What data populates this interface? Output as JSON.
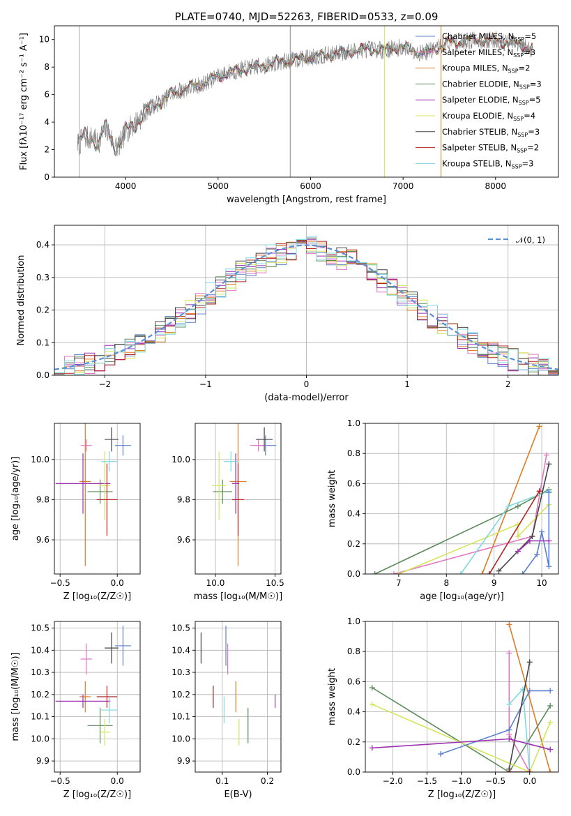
{
  "chart_data": [
    {
      "id": "spectrum",
      "type": "line",
      "title": "PLATE=0740, MJD=52263, FIBERID=0533, z=0.09",
      "xlabel": "wavelength [Angstrom, rest frame]",
      "ylabel": "Flux [fλ10⁻¹⁷ erg cm⁻² s⁻¹ A⁻¹]",
      "xlim": [
        3230,
        8680
      ],
      "ylim": [
        0,
        11
      ],
      "xticks": [
        4000,
        5000,
        6000,
        7000,
        8000
      ],
      "yticks": [
        0,
        2,
        4,
        6,
        8,
        10
      ],
      "grid": false,
      "legend": "upper right",
      "vlines": [
        3500,
        5780,
        6800,
        7410
      ],
      "observed": {
        "x": [
          3500,
          3550,
          3600,
          3650,
          3700,
          3750,
          3800,
          3850,
          3900,
          3950,
          4000,
          4100,
          4200,
          4300,
          4400,
          4500,
          4600,
          4700,
          4800,
          4900,
          5000,
          5100,
          5200,
          5300,
          5400,
          5500,
          5600,
          5700,
          5800,
          5900,
          6000,
          6100,
          6200,
          6300,
          6400,
          6500,
          6600,
          6700,
          6800,
          6900,
          7000,
          7100,
          7200,
          7300,
          7400,
          7500,
          7600,
          7700,
          7800,
          7900,
          8000,
          8100,
          8200,
          8300,
          8400
        ],
        "y": [
          2.4,
          3.0,
          2.8,
          2.9,
          2.4,
          3.2,
          3.5,
          2.7,
          2.2,
          2.5,
          3.3,
          3.9,
          4.6,
          5.2,
          5.5,
          6.1,
          6.3,
          6.5,
          6.7,
          7.0,
          7.3,
          7.6,
          7.7,
          7.9,
          8.0,
          8.1,
          8.3,
          8.4,
          8.5,
          8.6,
          8.7,
          8.8,
          8.9,
          9.0,
          9.1,
          9.2,
          9.3,
          9.3,
          9.2,
          9.4,
          9.4,
          9.3,
          9.0,
          9.2,
          9.5,
          9.8,
          9.8,
          9.9,
          10.0,
          9.9,
          10.0,
          9.8,
          9.7,
          9.5,
          9.3
        ]
      },
      "series": [
        {
          "name": "Chabrier MILES, N_SSP=5",
          "color": "#5b7fcc"
        },
        {
          "name": "Salpeter MILES, N_SSP=3",
          "color": "#e377c2"
        },
        {
          "name": "Kroupa MILES, N_SSP=2",
          "color": "#e07b24"
        },
        {
          "name": "Chabrier ELODIE, N_SSP=3",
          "color": "#5b8a5b"
        },
        {
          "name": "Salpeter ELODIE, N_SSP=5",
          "color": "#9b30b0"
        },
        {
          "name": "Kroupa ELODIE, N_SSP=4",
          "color": "#d4e55a"
        },
        {
          "name": "Chabrier STELIB, N_SSP=3",
          "color": "#444444"
        },
        {
          "name": "Salpeter STELIB, N_SSP=2",
          "color": "#b22222"
        },
        {
          "name": "Kroupa STELIB, N_SSP=3",
          "color": "#7fd8e0"
        }
      ],
      "legend_entries": [
        {
          "pre": "Chabrier MILES, N",
          "sub": "SSP",
          "post": "=5"
        },
        {
          "pre": "Salpeter MILES, N",
          "sub": "SSP",
          "post": "=3"
        },
        {
          "pre": "Kroupa MILES, N",
          "sub": "SSP",
          "post": "=2"
        },
        {
          "pre": "Chabrier ELODIE, N",
          "sub": "SSP",
          "post": "=3"
        },
        {
          "pre": "Salpeter ELODIE, N",
          "sub": "SSP",
          "post": "=5"
        },
        {
          "pre": "Kroupa ELODIE, N",
          "sub": "SSP",
          "post": "=4"
        },
        {
          "pre": "Chabrier STELIB, N",
          "sub": "SSP",
          "post": "=3"
        },
        {
          "pre": "Salpeter STELIB, N",
          "sub": "SSP",
          "post": "=2"
        },
        {
          "pre": "Kroupa STELIB, N",
          "sub": "SSP",
          "post": "=3"
        }
      ]
    },
    {
      "id": "residuals",
      "type": "step",
      "title": "",
      "xlabel": "(data-model)/error",
      "ylabel": "Normed distribution",
      "xlim": [
        -2.5,
        2.5
      ],
      "ylim": [
        0,
        0.46
      ],
      "xticks": [
        -2,
        -1,
        0,
        1,
        2
      ],
      "yticks": [
        0.0,
        0.1,
        0.2,
        0.3,
        0.4
      ],
      "grid": true,
      "legend": "upper right",
      "legend_label": "𝒩(0, 1)",
      "bins": {
        "start": -2.5,
        "width": 0.1,
        "count": 50
      },
      "gaussian": {
        "mean": 0,
        "sigma": 1,
        "color": "#5b8fd6"
      }
    },
    {
      "id": "age-vs-z",
      "type": "errorbar",
      "xlabel": "Z [log₁₀(Z/Z☉)]",
      "ylabel": "age  [log₁₀(age/yr)]",
      "xlim": [
        -0.55,
        0.2
      ],
      "ylim": [
        9.43,
        10.18
      ],
      "xticks": [
        -0.5,
        0.0
      ],
      "yticks": [
        9.6,
        9.8,
        10.0
      ],
      "grid": true,
      "points": [
        {
          "x": 0.05,
          "y": 10.07,
          "xerr": 0.07,
          "yerr": 0.05,
          "color": "#5b7fcc"
        },
        {
          "x": -0.27,
          "y": 10.07,
          "xerr": 0.05,
          "yerr": 0.03,
          "color": "#e377c2"
        },
        {
          "x": -0.28,
          "y": 9.89,
          "xerr": 0.05,
          "yerr": 0.42,
          "color": "#e07b24"
        },
        {
          "x": -0.15,
          "y": 9.84,
          "xerr": 0.11,
          "yerr": 0.06,
          "color": "#5b8a5b"
        },
        {
          "x": -0.3,
          "y": 9.88,
          "xerr": 0.24,
          "yerr": 0.15,
          "color": "#9b30b0"
        },
        {
          "x": -0.11,
          "y": 9.87,
          "xerr": 0.05,
          "yerr": 0.17,
          "color": "#d4e55a"
        },
        {
          "x": -0.05,
          "y": 10.1,
          "xerr": 0.06,
          "yerr": 0.06,
          "color": "#444444"
        },
        {
          "x": -0.09,
          "y": 9.8,
          "xerr": 0.09,
          "yerr": 0.18,
          "color": "#b22222"
        },
        {
          "x": -0.07,
          "y": 9.99,
          "xerr": 0.07,
          "yerr": 0.05,
          "color": "#7fd8e0"
        }
      ]
    },
    {
      "id": "age-vs-mass",
      "type": "errorbar",
      "xlabel": "mass [log₁₀(M/M☉)]",
      "ylabel": "",
      "xlim": [
        9.83,
        10.55
      ],
      "ylim": [
        9.43,
        10.18
      ],
      "xticks": [
        10.0,
        10.5
      ],
      "yticks": [
        9.6,
        9.8,
        10.0
      ],
      "grid": true,
      "points": [
        {
          "x": 10.42,
          "y": 10.07,
          "xerr": 0.09,
          "yerr": 0.05,
          "color": "#5b7fcc"
        },
        {
          "x": 10.36,
          "y": 10.07,
          "xerr": 0.07,
          "yerr": 0.03,
          "color": "#e377c2"
        },
        {
          "x": 10.19,
          "y": 9.89,
          "xerr": 0.07,
          "yerr": 0.42,
          "color": "#e07b24"
        },
        {
          "x": 10.06,
          "y": 9.84,
          "xerr": 0.08,
          "yerr": 0.06,
          "color": "#5b8a5b"
        },
        {
          "x": 10.17,
          "y": 9.88,
          "xerr": 0.03,
          "yerr": 0.15,
          "color": "#9b30b0"
        },
        {
          "x": 10.03,
          "y": 9.87,
          "xerr": 0.06,
          "yerr": 0.17,
          "color": "#d4e55a"
        },
        {
          "x": 10.41,
          "y": 10.1,
          "xerr": 0.07,
          "yerr": 0.06,
          "color": "#444444"
        },
        {
          "x": 10.19,
          "y": 9.8,
          "xerr": 0.05,
          "yerr": 0.18,
          "color": "#b22222"
        },
        {
          "x": 10.13,
          "y": 9.99,
          "xerr": 0.06,
          "yerr": 0.05,
          "color": "#7fd8e0"
        }
      ]
    },
    {
      "id": "weight-vs-age",
      "type": "line",
      "xlabel": "age  [log₁₀(age/yr)]",
      "ylabel": "mass weight",
      "xlim": [
        6.3,
        10.35
      ],
      "ylim": [
        0,
        1.0
      ],
      "xticks": [
        7,
        8,
        9,
        10
      ],
      "yticks": [
        0.0,
        0.2,
        0.4,
        0.6,
        0.8,
        1.0
      ],
      "grid": true,
      "series": [
        {
          "color": "#e07b24",
          "points": [
            [
              8.75,
              0.0
            ],
            [
              9.95,
              0.98
            ]
          ]
        },
        {
          "color": "#e377c2",
          "points": [
            [
              6.9,
              0.0
            ],
            [
              9.8,
              0.25
            ],
            [
              10.1,
              0.79
            ]
          ]
        },
        {
          "color": "#5b8a5b",
          "points": [
            [
              6.5,
              0.0
            ],
            [
              9.5,
              0.45
            ],
            [
              10.15,
              0.56
            ]
          ]
        },
        {
          "color": "#d4e55a",
          "points": [
            [
              7.0,
              0.0
            ],
            [
              9.5,
              0.33
            ],
            [
              9.5,
              0.25
            ],
            [
              10.15,
              0.46
            ]
          ]
        },
        {
          "color": "#7fd8e0",
          "points": [
            [
              8.3,
              0.0
            ],
            [
              9.3,
              0.45
            ],
            [
              10.15,
              0.55
            ]
          ]
        },
        {
          "color": "#5b7fcc",
          "points": [
            [
              9.6,
              0.0
            ],
            [
              9.9,
              0.13
            ],
            [
              10.0,
              0.28
            ],
            [
              10.15,
              0.05
            ],
            [
              10.15,
              0.54
            ]
          ]
        },
        {
          "color": "#444444",
          "points": [
            [
              9.1,
              0.02
            ],
            [
              9.8,
              0.25
            ],
            [
              10.15,
              0.73
            ]
          ]
        },
        {
          "color": "#b22222",
          "points": [
            [
              8.9,
              0.0
            ],
            [
              9.95,
              0.55
            ]
          ]
        },
        {
          "color": "#9b30b0",
          "points": [
            [
              9.5,
              0.15
            ],
            [
              9.75,
              0.22
            ],
            [
              10.15,
              0.22
            ]
          ]
        }
      ]
    },
    {
      "id": "mass-vs-z",
      "type": "errorbar",
      "xlabel": "Z [log₁₀(Z/Z☉)]",
      "ylabel": "mass [log₁₀(M/M☉)]",
      "xlim": [
        -0.55,
        0.2
      ],
      "ylim": [
        9.85,
        10.53
      ],
      "xticks": [
        -0.5,
        0.0
      ],
      "yticks": [
        9.9,
        10.0,
        10.1,
        10.2,
        10.3,
        10.4,
        10.5
      ],
      "grid": true,
      "points": [
        {
          "x": 0.05,
          "y": 10.42,
          "xerr": 0.07,
          "yerr": 0.09,
          "color": "#5b7fcc"
        },
        {
          "x": -0.27,
          "y": 10.36,
          "xerr": 0.05,
          "yerr": 0.07,
          "color": "#e377c2"
        },
        {
          "x": -0.28,
          "y": 10.19,
          "xerr": 0.05,
          "yerr": 0.07,
          "color": "#e07b24"
        },
        {
          "x": -0.15,
          "y": 10.06,
          "xerr": 0.11,
          "yerr": 0.08,
          "color": "#5b8a5b"
        },
        {
          "x": -0.3,
          "y": 10.17,
          "xerr": 0.24,
          "yerr": 0.03,
          "color": "#9b30b0"
        },
        {
          "x": -0.11,
          "y": 10.03,
          "xerr": 0.05,
          "yerr": 0.06,
          "color": "#d4e55a"
        },
        {
          "x": -0.05,
          "y": 10.41,
          "xerr": 0.06,
          "yerr": 0.07,
          "color": "#444444"
        },
        {
          "x": -0.09,
          "y": 10.19,
          "xerr": 0.09,
          "yerr": 0.05,
          "color": "#b22222"
        },
        {
          "x": -0.07,
          "y": 10.13,
          "xerr": 0.07,
          "yerr": 0.06,
          "color": "#7fd8e0"
        }
      ]
    },
    {
      "id": "mass-vs-ebv",
      "type": "errorbar",
      "xlabel": "E(B-V)",
      "ylabel": "",
      "xlim": [
        0.04,
        0.23
      ],
      "ylim": [
        9.85,
        10.53
      ],
      "xticks": [
        0.1,
        0.2
      ],
      "yticks": [
        9.9,
        10.0,
        10.1,
        10.2,
        10.3,
        10.4,
        10.5
      ],
      "grid": true,
      "points": [
        {
          "x": 0.108,
          "y": 10.42,
          "yerr": 0.09,
          "color": "#5b7fcc"
        },
        {
          "x": 0.112,
          "y": 10.36,
          "yerr": 0.07,
          "color": "#e377c2"
        },
        {
          "x": 0.13,
          "y": 10.19,
          "yerr": 0.07,
          "color": "#e07b24"
        },
        {
          "x": 0.157,
          "y": 10.06,
          "yerr": 0.08,
          "color": "#5b8a5b"
        },
        {
          "x": 0.217,
          "y": 10.17,
          "yerr": 0.03,
          "color": "#9b30b0"
        },
        {
          "x": 0.137,
          "y": 10.03,
          "yerr": 0.06,
          "color": "#d4e55a"
        },
        {
          "x": 0.053,
          "y": 10.41,
          "yerr": 0.07,
          "color": "#444444"
        },
        {
          "x": 0.08,
          "y": 10.19,
          "yerr": 0.05,
          "color": "#b22222"
        },
        {
          "x": 0.104,
          "y": 10.13,
          "yerr": 0.06,
          "color": "#7fd8e0"
        }
      ]
    },
    {
      "id": "weight-vs-z",
      "type": "line",
      "xlabel": "Z [log₁₀(Z/Z☉)]",
      "ylabel": "mass weight",
      "xlim": [
        -2.4,
        0.42
      ],
      "ylim": [
        0,
        1.0
      ],
      "xticks": [
        -2.0,
        -1.5,
        -1.0,
        -0.5,
        0.0
      ],
      "yticks": [
        0.0,
        0.2,
        0.4,
        0.6,
        0.8,
        1.0
      ],
      "grid": true,
      "series": [
        {
          "color": "#e07b24",
          "points": [
            [
              -0.3,
              0.98
            ],
            [
              0.3,
              0.0
            ]
          ]
        },
        {
          "color": "#e377c2",
          "points": [
            [
              -0.3,
              0.79
            ],
            [
              -0.3,
              0.25
            ],
            [
              0.0,
              0.0
            ]
          ]
        },
        {
          "color": "#5b8a5b",
          "points": [
            [
              -2.3,
              0.56
            ],
            [
              -0.3,
              0.0
            ],
            [
              0.3,
              0.44
            ]
          ]
        },
        {
          "color": "#d4e55a",
          "points": [
            [
              -2.3,
              0.45
            ],
            [
              0.0,
              0.0
            ],
            [
              0.3,
              0.33
            ]
          ]
        },
        {
          "color": "#7fd8e0",
          "points": [
            [
              -0.3,
              0.45
            ],
            [
              -0.1,
              0.55
            ],
            [
              0.0,
              0.0
            ]
          ]
        },
        {
          "color": "#5b7fcc",
          "points": [
            [
              -1.3,
              0.12
            ],
            [
              -0.3,
              0.28
            ],
            [
              0.0,
              0.54
            ],
            [
              0.3,
              0.54
            ]
          ]
        },
        {
          "color": "#444444",
          "points": [
            [
              -0.3,
              0.02
            ],
            [
              0.0,
              0.73
            ]
          ]
        },
        {
          "color": "#b22222",
          "points": [
            [
              -0.3,
              0.0
            ],
            [
              0.0,
              0.0
            ]
          ]
        },
        {
          "color": "#9b30b0",
          "points": [
            [
              -2.3,
              0.16
            ],
            [
              -0.3,
              0.22
            ],
            [
              0.3,
              0.15
            ]
          ]
        }
      ]
    }
  ]
}
